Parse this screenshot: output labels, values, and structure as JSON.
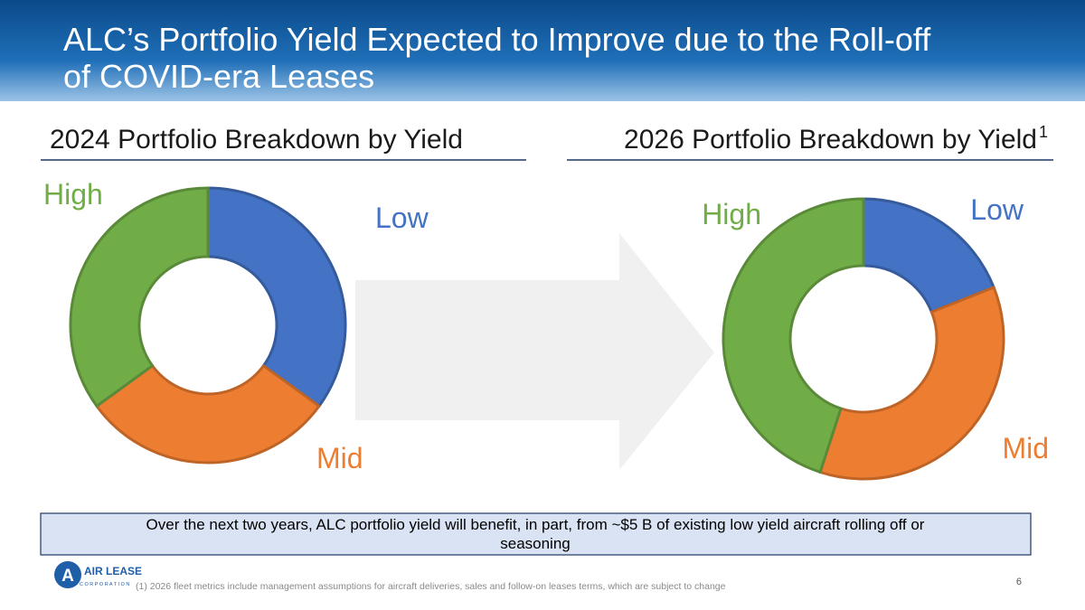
{
  "title_lines": [
    "ALC’s Portfolio Yield Expected to Improve due to the Roll-off",
    "of COVID-era Leases"
  ],
  "footnote_marker": "1",
  "chart_data": [
    {
      "type": "donut",
      "title": "2024 Portfolio Breakdown by Yield",
      "categories": [
        "Low",
        "Mid",
        "High"
      ],
      "values": [
        35,
        30,
        35
      ],
      "colors": [
        "#4472c4",
        "#ed7d31",
        "#70ad47"
      ]
    },
    {
      "type": "donut",
      "title": "2026 Portfolio Breakdown by Yield",
      "categories": [
        "Low",
        "Mid",
        "High"
      ],
      "values": [
        19,
        36,
        45
      ],
      "colors": [
        "#4472c4",
        "#ed7d31",
        "#70ad47"
      ]
    }
  ],
  "callout": [
    "Over the next two years, ALC portfolio yield will benefit, in part, from ~$5 B of existing low yield aircraft rolling off or",
    "seasoning"
  ],
  "footnote": "(1) 2026 fleet metrics include management assumptions for aircraft deliveries, sales and follow-on leases terms, which are subject to change",
  "page_number": "6",
  "logo": {
    "mark": "A",
    "name": "AIR LEASE",
    "subtitle": "C O R P O R A T I O N"
  }
}
